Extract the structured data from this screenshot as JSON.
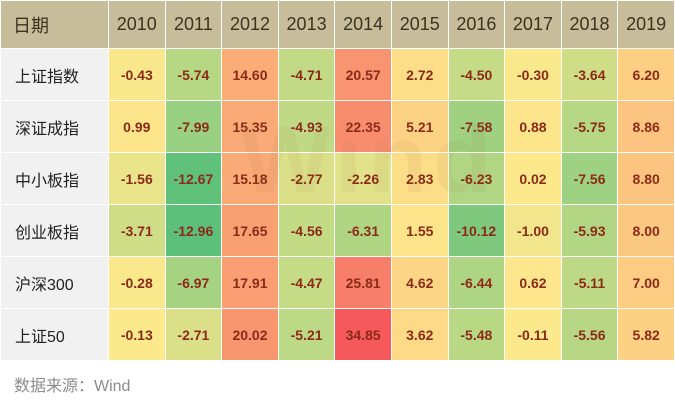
{
  "table": {
    "corner_label": "日期"
  },
  "chart_data": {
    "type": "heatmap",
    "x": [
      "2010",
      "2011",
      "2012",
      "2013",
      "2014",
      "2015",
      "2016",
      "2017",
      "2018",
      "2019"
    ],
    "y": [
      "上证指数",
      "深证成指",
      "中小板指",
      "创业板指",
      "沪深300",
      "上证50"
    ],
    "values": [
      [
        "-0.43",
        "-5.74",
        "14.60",
        "-4.71",
        "20.57",
        "2.72",
        "-4.50",
        "-0.30",
        "-3.64",
        "6.20"
      ],
      [
        "0.99",
        "-7.99",
        "15.35",
        "-4.93",
        "22.35",
        "5.21",
        "-7.58",
        "0.88",
        "-5.75",
        "8.86"
      ],
      [
        "-1.56",
        "-12.67",
        "15.18",
        "-2.77",
        "-2.26",
        "2.83",
        "-6.23",
        "0.02",
        "-7.56",
        "8.80"
      ],
      [
        "-3.71",
        "-12.96",
        "17.65",
        "-4.56",
        "-6.31",
        "1.55",
        "-10.12",
        "-1.00",
        "-5.93",
        "8.00"
      ],
      [
        "-0.28",
        "-6.97",
        "17.91",
        "-4.47",
        "25.81",
        "4.62",
        "-6.44",
        "0.62",
        "-5.11",
        "7.00"
      ],
      [
        "-0.13",
        "-2.71",
        "20.02",
        "-5.21",
        "34.85",
        "3.62",
        "-5.48",
        "-0.11",
        "-5.56",
        "5.82"
      ]
    ],
    "color_scale": {
      "low": "#5cc07a",
      "mid": "#fde98c",
      "high": "#f5595b"
    }
  },
  "watermark": "Wind",
  "source": "数据来源：Wind"
}
